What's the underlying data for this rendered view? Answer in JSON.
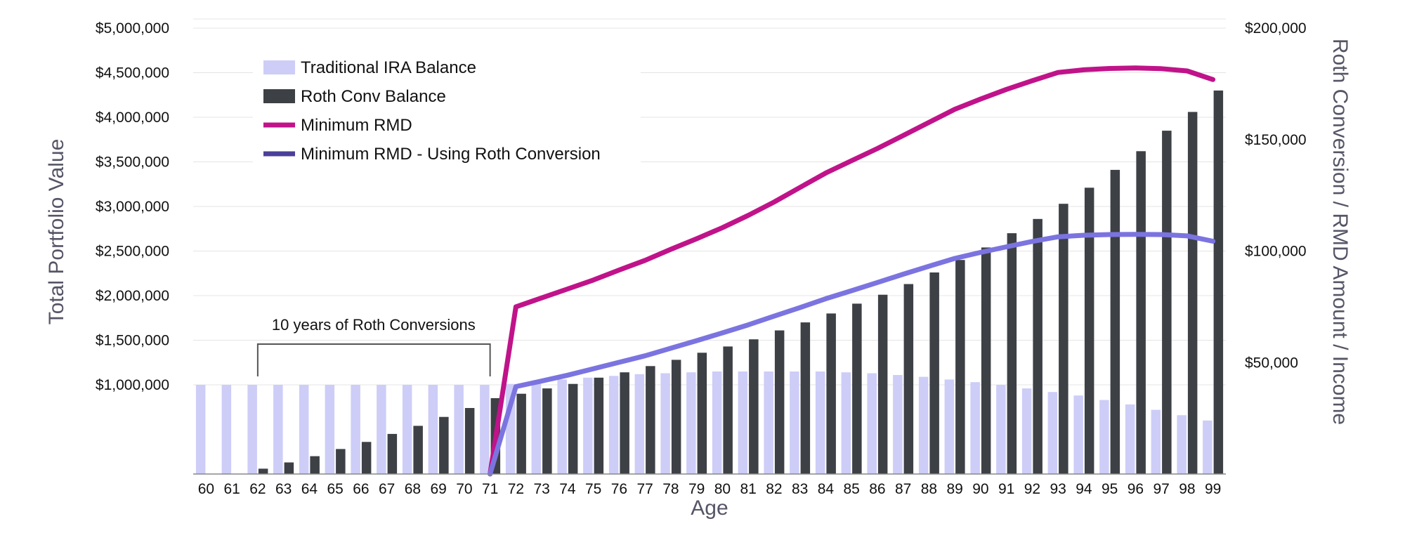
{
  "chart_data": {
    "type": "bar",
    "xlabel": "Age",
    "ylabel_left": "Total Portfolio Value",
    "ylabel_right": "Roth Conversion / RMD Amount / Income",
    "x": [
      60,
      61,
      62,
      63,
      64,
      65,
      66,
      67,
      68,
      69,
      70,
      71,
      72,
      73,
      74,
      75,
      76,
      77,
      78,
      79,
      80,
      81,
      82,
      83,
      84,
      85,
      86,
      87,
      88,
      89,
      90,
      91,
      92,
      93,
      94,
      95,
      96,
      97,
      98,
      99
    ],
    "ylim_left": [
      0,
      5000000
    ],
    "ylim_right": [
      0,
      200000
    ],
    "left_ticks": [
      {
        "value": 1000000,
        "label": "$1,000,000"
      },
      {
        "value": 1500000,
        "label": "$1,500,000"
      },
      {
        "value": 2000000,
        "label": "$2,000,000"
      },
      {
        "value": 2500000,
        "label": "$2,500,000"
      },
      {
        "value": 3000000,
        "label": "$3,000,000"
      },
      {
        "value": 3500000,
        "label": "$3,500,000"
      },
      {
        "value": 4000000,
        "label": "$4,000,000"
      },
      {
        "value": 4500000,
        "label": "$4,500,000"
      },
      {
        "value": 5000000,
        "label": "$5,000,000"
      }
    ],
    "right_ticks": [
      {
        "value": 50000,
        "label": "$50,000"
      },
      {
        "value": 100000,
        "label": "$100,000"
      },
      {
        "value": 150000,
        "label": "$150,000"
      },
      {
        "value": 200000,
        "label": "$200,000"
      }
    ],
    "grid": true,
    "legend_position": "top-left",
    "series": [
      {
        "name": "Traditional IRA Balance",
        "type": "bar",
        "axis": "left",
        "color": "#cdcdf8",
        "values": [
          1000000,
          1000000,
          1000000,
          1000000,
          1000000,
          1000000,
          1000000,
          1000000,
          1000000,
          1000000,
          1000000,
          1000000,
          1010000,
          1030000,
          1060000,
          1080000,
          1100000,
          1120000,
          1130000,
          1140000,
          1150000,
          1150000,
          1150000,
          1150000,
          1150000,
          1140000,
          1130000,
          1110000,
          1090000,
          1060000,
          1030000,
          1000000,
          960000,
          920000,
          880000,
          830000,
          780000,
          720000,
          660000,
          600000
        ]
      },
      {
        "name": "Roth Conv Balance",
        "type": "bar",
        "axis": "left",
        "color": "#3d4045",
        "values": [
          0,
          0,
          60000,
          130000,
          200000,
          280000,
          360000,
          450000,
          540000,
          640000,
          740000,
          850000,
          900000,
          960000,
          1010000,
          1080000,
          1140000,
          1210000,
          1280000,
          1360000,
          1430000,
          1510000,
          1610000,
          1700000,
          1800000,
          1910000,
          2010000,
          2130000,
          2260000,
          2400000,
          2540000,
          2700000,
          2860000,
          3030000,
          3210000,
          3410000,
          3620000,
          3850000,
          4060000,
          4300000
        ]
      },
      {
        "name": "Minimum RMD",
        "type": "line",
        "axis": "right",
        "color": "#c0138a",
        "values": [
          null,
          null,
          null,
          null,
          null,
          null,
          null,
          null,
          null,
          null,
          null,
          0,
          75000,
          79000,
          83000,
          87000,
          91500,
          95800,
          100800,
          105500,
          110500,
          116000,
          122000,
          128500,
          135000,
          140500,
          146000,
          151800,
          157700,
          163600,
          168200,
          172500,
          176400,
          180100,
          181300,
          181900,
          182100,
          181800,
          180800,
          176900
        ]
      },
      {
        "name": "Minimum RMD - Using Roth Conversion",
        "type": "line",
        "axis": "right",
        "color": "#7b74e0",
        "legend_color": "#4b3f9a",
        "values": [
          null,
          null,
          null,
          null,
          null,
          null,
          null,
          null,
          null,
          null,
          null,
          0,
          39200,
          41700,
          44300,
          47200,
          50100,
          53000,
          56400,
          59800,
          63300,
          66900,
          70800,
          74600,
          78600,
          82200,
          85900,
          89600,
          93200,
          96700,
          99400,
          101900,
          104300,
          106400,
          107100,
          107400,
          107500,
          107400,
          106800,
          104400
        ]
      }
    ],
    "annotation": {
      "text": "10 years of Roth Conversions",
      "from_x": 62,
      "to_x": 71
    }
  }
}
